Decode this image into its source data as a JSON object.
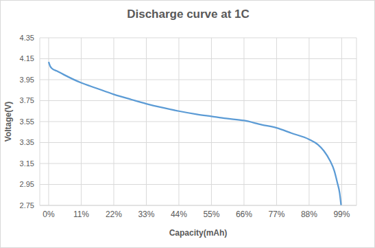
{
  "chart_data": {
    "type": "line",
    "title": "Discharge curve at 1C",
    "x_label": "Capacity(mAh)",
    "y_label": "Voltage(V)",
    "x": [
      0,
      0.5,
      1,
      3,
      5,
      11,
      16,
      22,
      28,
      33,
      39,
      44,
      50,
      55,
      60,
      66,
      72,
      77,
      82,
      88,
      91,
      93,
      95,
      96.5,
      97.5,
      98.3,
      98.8
    ],
    "series": [
      {
        "name": "Voltage",
        "color": "#5b9bd5",
        "values": [
          4.12,
          4.08,
          4.06,
          4.03,
          4.0,
          3.92,
          3.87,
          3.81,
          3.76,
          3.72,
          3.68,
          3.65,
          3.62,
          3.6,
          3.58,
          3.56,
          3.52,
          3.49,
          3.44,
          3.38,
          3.33,
          3.27,
          3.18,
          3.08,
          2.97,
          2.87,
          2.75
        ]
      }
    ],
    "xlim": [
      -3,
      104
    ],
    "xticks": [
      {
        "value": 0,
        "label": "0%"
      },
      {
        "value": 11,
        "label": "11%"
      },
      {
        "value": 22,
        "label": "22%"
      },
      {
        "value": 33,
        "label": "33%"
      },
      {
        "value": 44,
        "label": "44%"
      },
      {
        "value": 55,
        "label": "55%"
      },
      {
        "value": 66,
        "label": "66%"
      },
      {
        "value": 77,
        "label": "77%"
      },
      {
        "value": 88,
        "label": "88%"
      },
      {
        "value": 99,
        "label": "99%"
      }
    ],
    "ylim": [
      2.75,
      4.35
    ],
    "yticks": [
      2.75,
      2.95,
      3.15,
      3.35,
      3.55,
      3.75,
      3.95,
      4.15,
      4.35
    ],
    "grid": true
  }
}
